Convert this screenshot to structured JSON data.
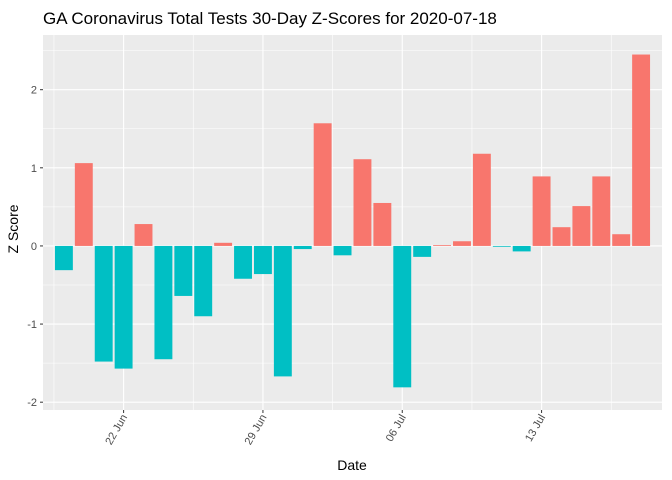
{
  "chart_data": {
    "type": "bar",
    "title": "GA Coronavirus Total Tests 30-Day Z-Scores for 2020-07-18",
    "xlabel": "Date",
    "ylabel": "Z Score",
    "ylim": [
      -2.1,
      2.7
    ],
    "y_ticks": [
      -2,
      -1,
      0,
      1,
      2
    ],
    "x_ticks": [
      {
        "date": "2020-06-22",
        "label": "22 Jun"
      },
      {
        "date": "2020-06-29",
        "label": "29 Jun"
      },
      {
        "date": "2020-07-06",
        "label": "06 Jul"
      },
      {
        "date": "2020-07-13",
        "label": "13 Jul"
      }
    ],
    "positive_color": "#F8766D",
    "negative_color": "#00BFC4",
    "panel_background": "#EBEBEB",
    "grid": true,
    "legend": "none",
    "dates": [
      "2020-06-19",
      "2020-06-20",
      "2020-06-21",
      "2020-06-22",
      "2020-06-23",
      "2020-06-24",
      "2020-06-25",
      "2020-06-26",
      "2020-06-27",
      "2020-06-28",
      "2020-06-29",
      "2020-06-30",
      "2020-07-01",
      "2020-07-02",
      "2020-07-03",
      "2020-07-04",
      "2020-07-05",
      "2020-07-06",
      "2020-07-07",
      "2020-07-08",
      "2020-07-09",
      "2020-07-10",
      "2020-07-11",
      "2020-07-12",
      "2020-07-13",
      "2020-07-14",
      "2020-07-15",
      "2020-07-16",
      "2020-07-17",
      "2020-07-18"
    ],
    "values": [
      -0.31,
      1.06,
      -1.48,
      -1.57,
      0.28,
      -1.45,
      -0.64,
      -0.9,
      0.04,
      -0.42,
      -0.36,
      -1.67,
      -0.04,
      1.57,
      -0.12,
      1.11,
      0.55,
      -1.81,
      -0.14,
      0.01,
      0.06,
      1.18,
      -0.01,
      -0.07,
      0.89,
      0.24,
      0.51,
      0.89,
      0.15,
      2.45
    ]
  }
}
